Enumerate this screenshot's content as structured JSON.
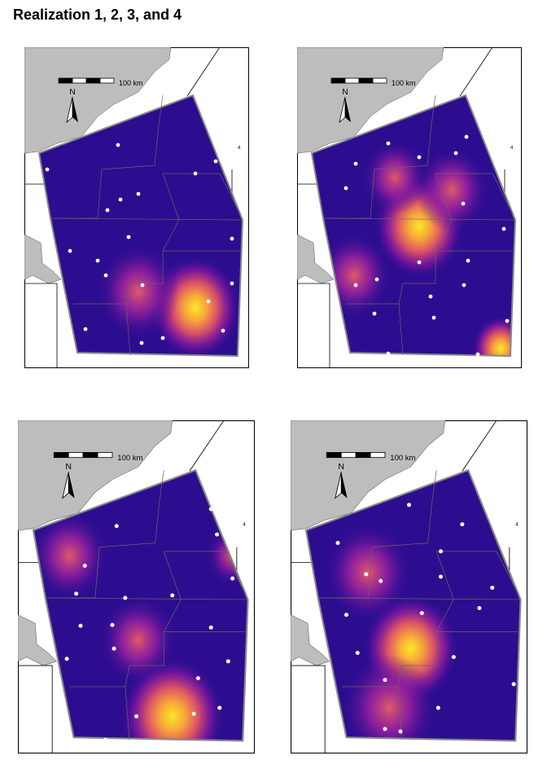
{
  "title": "Realization 1, 2, 3, and 4",
  "panels": [
    {
      "scale_label": "100 km",
      "north_label": "N",
      "marker_label": "4"
    },
    {
      "scale_label": "100 km",
      "north_label": "N",
      "marker_label": "4"
    },
    {
      "scale_label": "100 km",
      "north_label": "N",
      "marker_label": "4"
    },
    {
      "scale_label": "100 km",
      "north_label": "N",
      "marker_label": "4"
    }
  ]
}
